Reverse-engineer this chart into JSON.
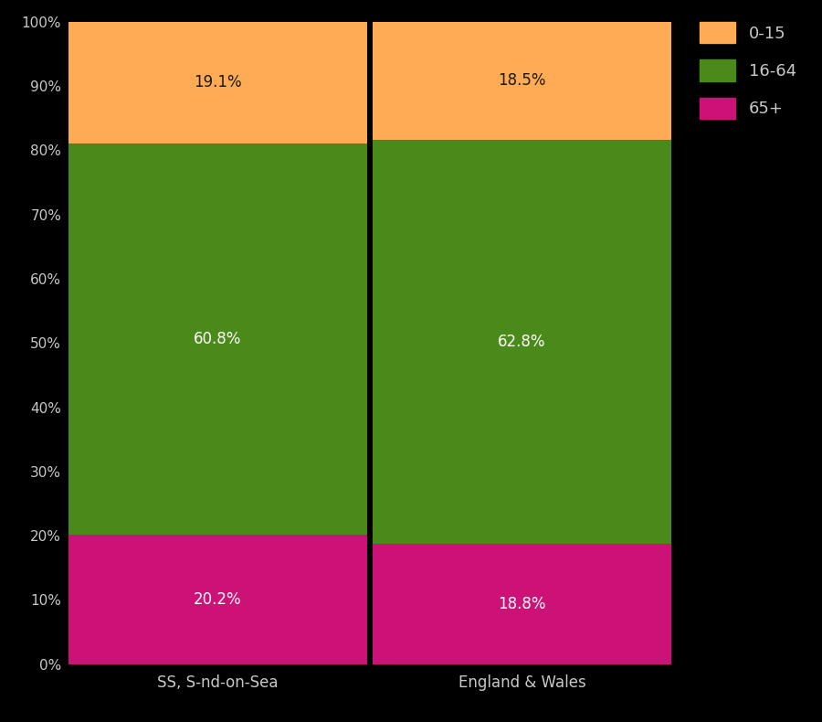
{
  "categories": [
    "SS, S-nd-on-Sea",
    "England & Wales"
  ],
  "segments": {
    "65+": [
      20.2,
      18.8
    ],
    "16-64": [
      60.8,
      62.8
    ],
    "0-15": [
      19.1,
      18.5
    ]
  },
  "colors": {
    "0-15": "#FFAA55",
    "16-64": "#4A8A1A",
    "65+": "#CC1177"
  },
  "segment_order": [
    "65+",
    "16-64",
    "0-15"
  ],
  "legend_order": [
    "0-15",
    "16-64",
    "65+"
  ],
  "background_color": "#000000",
  "text_color": "#C8C8C8",
  "label_color_0-15": "#1a1a00",
  "label_color_16-64": "#FFFFFF",
  "label_color_65+": "#FFFFFF",
  "yticks": [
    0,
    10,
    20,
    30,
    40,
    50,
    60,
    70,
    80,
    90,
    100
  ],
  "ytick_labels": [
    "0%",
    "10%",
    "20%",
    "30%",
    "40%",
    "50%",
    "60%",
    "70%",
    "80%",
    "90%",
    "100%"
  ],
  "figsize": [
    9.0,
    7.9
  ],
  "dpi": 100
}
